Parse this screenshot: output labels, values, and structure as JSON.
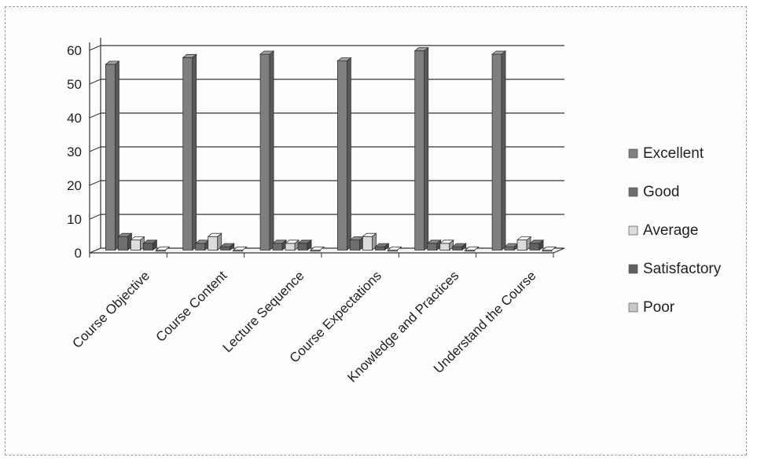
{
  "chart_data": {
    "type": "bar",
    "categories": [
      "Course Objective",
      "Course Content",
      "Lecture Sequence",
      "Course Expectations",
      "Knowledge and Practices",
      "Understand the Course"
    ],
    "series": [
      {
        "name": "Excellent",
        "values": [
          55,
          57,
          58,
          56,
          59,
          58
        ],
        "color": "#7f7f7f"
      },
      {
        "name": "Good",
        "values": [
          4,
          2,
          2,
          3,
          2,
          1
        ],
        "color": "#6e6e6e"
      },
      {
        "name": "Average",
        "values": [
          3,
          4,
          2,
          4,
          2,
          3
        ],
        "color": "#dcdcdc"
      },
      {
        "name": "Satisfactory",
        "values": [
          2,
          1,
          2,
          1,
          1,
          2
        ],
        "color": "#606060"
      },
      {
        "name": "Poor",
        "values": [
          0,
          0,
          0,
          0,
          0,
          0
        ],
        "color": "#c8c8c8"
      }
    ],
    "y_ticks": [
      "0",
      "10",
      "20",
      "30",
      "40",
      "50",
      "60"
    ],
    "ylim": [
      0,
      60
    ],
    "grid": true,
    "legend_position": "right"
  }
}
